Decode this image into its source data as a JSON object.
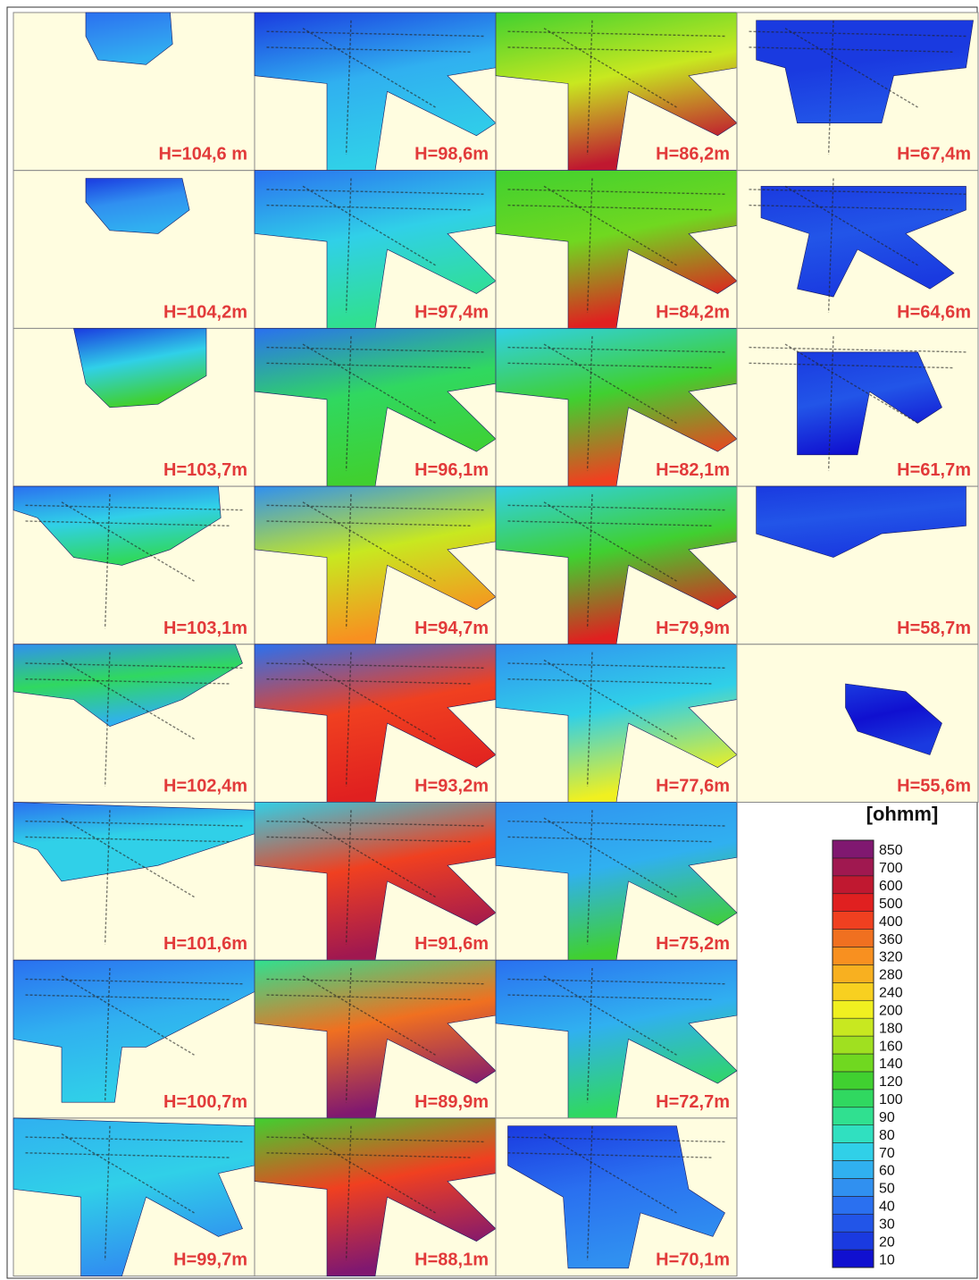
{
  "panels": [
    {
      "label": "H=104,6 m"
    },
    {
      "label": "H=104,2m"
    },
    {
      "label": "H=103,7m"
    },
    {
      "label": "H=103,1m"
    },
    {
      "label": "H=102,4m"
    },
    {
      "label": "H=101,6m"
    },
    {
      "label": "H=100,7m"
    },
    {
      "label": "H=99,7m"
    },
    {
      "label": "H=98,6m"
    },
    {
      "label": "H=97,4m"
    },
    {
      "label": "H=96,1m"
    },
    {
      "label": "H=94,7m"
    },
    {
      "label": "H=93,2m"
    },
    {
      "label": "H=91,6m"
    },
    {
      "label": "H=89,9m"
    },
    {
      "label": "H=88,1m"
    },
    {
      "label": "H=86,2m"
    },
    {
      "label": "H=84,2m"
    },
    {
      "label": "H=82,1m"
    },
    {
      "label": "H=79,9m"
    },
    {
      "label": "H=77,6m"
    },
    {
      "label": "H=75,2m"
    },
    {
      "label": "H=72,7m"
    },
    {
      "label": "H=70,1m"
    },
    {
      "label": "H=67,4m"
    },
    {
      "label": "H=64,6m"
    },
    {
      "label": "H=61,7m"
    },
    {
      "label": "H=58,7m"
    },
    {
      "label": "H=55,6m"
    }
  ],
  "colorbar": {
    "title": "[ohmm]",
    "levels": [
      10,
      20,
      30,
      40,
      50,
      60,
      70,
      80,
      90,
      100,
      120,
      140,
      160,
      180,
      200,
      240,
      280,
      320,
      360,
      400,
      500,
      600,
      700,
      850
    ],
    "colors": [
      "#1010d0",
      "#1a3ae0",
      "#2255e8",
      "#2a70f0",
      "#3090f0",
      "#30b0f0",
      "#30d0e8",
      "#30e0c0",
      "#30e090",
      "#30d860",
      "#40d030",
      "#70d820",
      "#a0e020",
      "#c8e820",
      "#f0f020",
      "#f8d020",
      "#f8b020",
      "#f89020",
      "#f07020",
      "#f04020",
      "#e02020",
      "#c01830",
      "#a01850",
      "#801870"
    ]
  }
}
